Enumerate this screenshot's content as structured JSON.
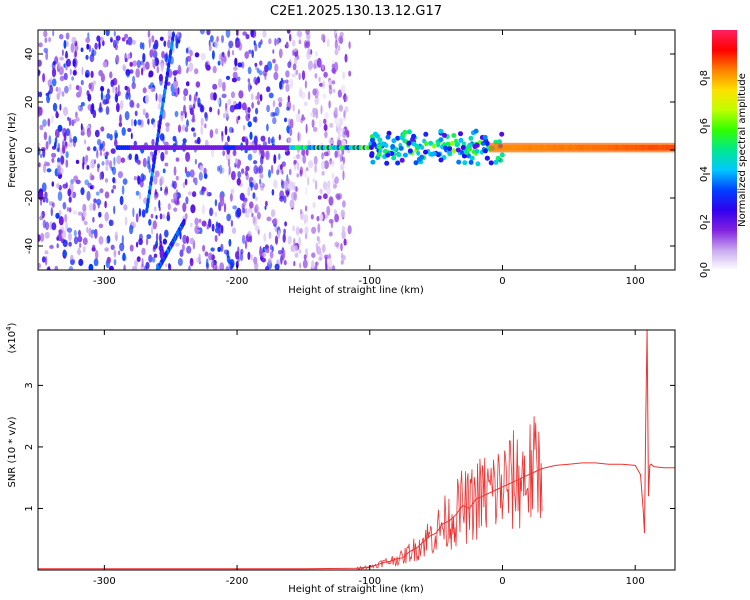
{
  "chart_data": [
    {
      "type": "heatmap",
      "title": "C2E1.2025.130.13.12.G17",
      "xlabel": "Height of straight line (km)",
      "ylabel": "Frequency (Hz)",
      "xlim": [
        -350,
        130
      ],
      "ylim": [
        -50,
        50
      ],
      "xticks": [
        -300,
        -200,
        -100,
        0,
        100
      ],
      "yticks": [
        -40,
        -20,
        0,
        20,
        40
      ],
      "colorbar": {
        "label": "Normalized spectral amplitude",
        "range": [
          0,
          1
        ],
        "ticks": [
          "0.0",
          "0.2",
          "0.4",
          "0.6",
          "0.8"
        ],
        "tick_values": [
          0.0,
          0.2,
          0.4,
          0.6,
          0.8
        ],
        "colormap": [
          "#ffffff",
          "#c8a8f0",
          "#8020e0",
          "#3000f0",
          "#0040ff",
          "#00c8ff",
          "#00e890",
          "#30ff00",
          "#c0ff00",
          "#ffe000",
          "#ff8000",
          "#ff0000",
          "#ff2060"
        ]
      },
      "features": {
        "noise_region_x": [
          -350,
          -130
        ],
        "carrier_frequency_hz": 1,
        "carrier_start_km": -160,
        "strong_band_x": [
          -10,
          130
        ],
        "diagonal_streaks": [
          {
            "x": [
              -248,
              -268
            ],
            "y": [
              48,
              -25
            ]
          },
          {
            "x": [
              -240,
              -260
            ],
            "y": [
              -30,
              -50
            ]
          }
        ]
      }
    },
    {
      "type": "line",
      "xlabel": "Height of straight line (km)",
      "ylabel": "SNR (10 * v/v)",
      "exponent_label": "(x10",
      "exponent_power": "4",
      "exponent_close": ")",
      "xlim": [
        -350,
        130
      ],
      "ylim": [
        0,
        3.9
      ],
      "xticks": [
        -300,
        -200,
        -100,
        0,
        100
      ],
      "yticks": [
        1,
        2,
        3
      ],
      "line_color": "#ee3333",
      "series": [
        {
          "name": "SNR",
          "x": [
            -350,
            -300,
            -250,
            -200,
            -150,
            -110,
            -100,
            -95,
            -90,
            -85,
            -80,
            -75,
            -70,
            -65,
            -60,
            -55,
            -50,
            -45,
            -40,
            -35,
            -30,
            -25,
            -20,
            -15,
            -10,
            -5,
            0,
            5,
            10,
            15,
            20,
            25,
            30,
            40,
            50,
            60,
            70,
            80,
            90,
            100,
            104,
            106,
            107,
            108,
            109,
            110,
            111,
            112,
            114,
            118,
            122,
            126,
            130
          ],
          "y": [
            0.02,
            0.02,
            0.02,
            0.02,
            0.02,
            0.03,
            0.05,
            0.08,
            0.12,
            0.14,
            0.18,
            0.2,
            0.3,
            0.35,
            0.45,
            0.55,
            0.6,
            0.75,
            0.8,
            0.9,
            1.05,
            1.0,
            1.15,
            1.2,
            1.25,
            1.3,
            1.35,
            1.4,
            1.45,
            1.5,
            1.55,
            1.6,
            1.65,
            1.7,
            1.72,
            1.74,
            1.74,
            1.72,
            1.72,
            1.7,
            1.55,
            1.0,
            0.6,
            2.5,
            3.9,
            1.2,
            1.7,
            1.72,
            1.68,
            1.67,
            1.66,
            1.66,
            1.66
          ]
        }
      ]
    }
  ]
}
